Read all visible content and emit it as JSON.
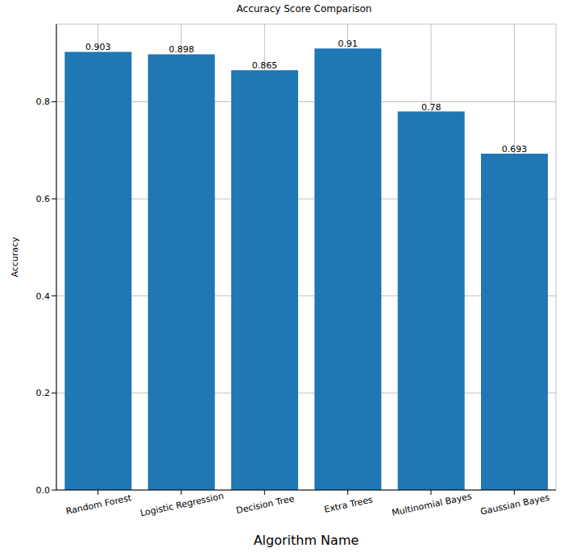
{
  "chart_data": {
    "type": "bar",
    "title": "Accuracy Score Comparison",
    "x_label": "Algorithm Name",
    "y_label": "Accuracy",
    "categories": [
      "Random Forest",
      "Logistic Regression",
      "Decision Tree",
      "Extra Trees",
      "Multinomial Bayes",
      "Gaussian Bayes"
    ],
    "values": [
      0.903,
      0.898,
      0.865,
      0.91,
      0.78,
      0.693
    ],
    "color": "#1f77b4",
    "ylim": [
      0,
      0.96
    ],
    "yticks": [
      {
        "value": 0,
        "label": "0.0"
      },
      0.2,
      0.4,
      0.6,
      0.8
    ],
    "grid": true,
    "data_labels": true
  }
}
